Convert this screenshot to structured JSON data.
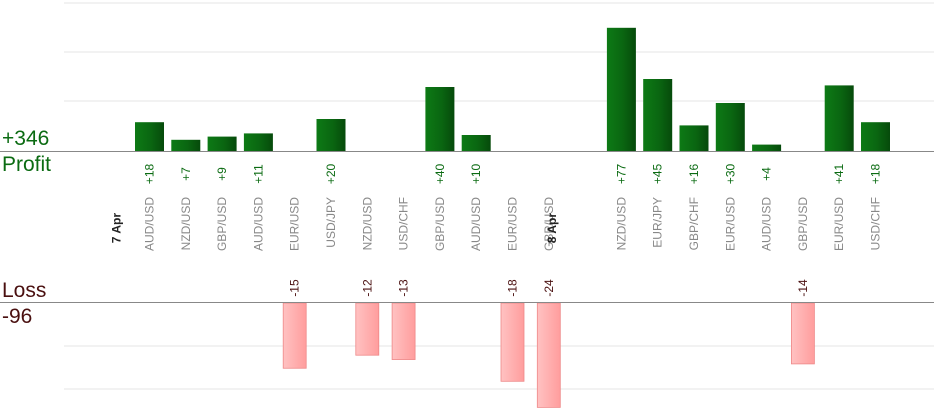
{
  "summary": {
    "profit_total": "+346",
    "profit_label": "Profit",
    "loss_label": "Loss",
    "loss_total": "-96"
  },
  "colors": {
    "profit_bar": "#0b6b12",
    "loss_bar": "#ffb0b0",
    "profit_text": "#0b6b12",
    "loss_text": "#4a1010",
    "axis": "#888888",
    "grid": "#e6e6e6"
  },
  "chart_data": {
    "type": "bar",
    "title": "",
    "ylim_profit_visible": [
      0,
      50
    ],
    "ylim_loss_visible": [
      -25,
      0
    ],
    "grid": true,
    "groups": [
      {
        "date": "7 Apr",
        "trades": [
          {
            "pair": "AUD/USD",
            "value": 18
          },
          {
            "pair": "NZD/USD",
            "value": 7
          },
          {
            "pair": "GBP/USD",
            "value": 9
          },
          {
            "pair": "AUD/USD",
            "value": 11
          },
          {
            "pair": "EUR/USD",
            "value": -15
          },
          {
            "pair": "USD/JPY",
            "value": 20
          },
          {
            "pair": "NZD/USD",
            "value": -12
          },
          {
            "pair": "USD/CHF",
            "value": -13
          },
          {
            "pair": "GBP/USD",
            "value": 40
          },
          {
            "pair": "AUD/USD",
            "value": 10
          },
          {
            "pair": "EUR/USD",
            "value": -18
          },
          {
            "pair": "GBP/USD",
            "value": -24
          }
        ]
      },
      {
        "date": "8 Apr",
        "trades": [
          {
            "pair": "NZD/USD",
            "value": 77
          },
          {
            "pair": "EUR/JPY",
            "value": 45
          },
          {
            "pair": "GBP/CHF",
            "value": 16
          },
          {
            "pair": "EUR/USD",
            "value": 30
          },
          {
            "pair": "AUD/USD",
            "value": 4
          },
          {
            "pair": "GBP/USD",
            "value": -14
          },
          {
            "pair": "EUR/USD",
            "value": 41
          },
          {
            "pair": "USD/CHF",
            "value": 18
          }
        ]
      }
    ]
  }
}
